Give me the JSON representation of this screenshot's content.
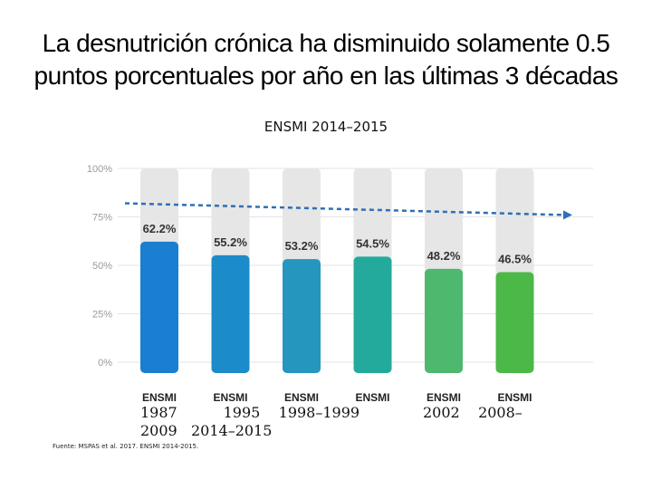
{
  "slide": {
    "title": "La desnutrición crónica ha disminuido solamente 0.5 puntos porcentuales por año en las últimas 3 décadas",
    "subtitle": "ENSMI 2014–2015",
    "years_line1": "1987          1995    1998–1999",
    "years_line2": "2009   2014–2015",
    "years_right": "2002    2008–",
    "source": "Fuente: MSPAS et al. 2017. ENSMI 2014-2015."
  },
  "chart_data": {
    "type": "bar",
    "title": "ENSMI 2014–2015",
    "categories": [
      "ENSMI",
      "ENSMI",
      "ENSMI",
      "ENSMI",
      "ENSMI",
      "ENSMI"
    ],
    "values": [
      62.2,
      55.2,
      53.2,
      54.5,
      48.2,
      46.5
    ],
    "labels": [
      "62.2%",
      "55.2%",
      "53.2%",
      "54.5%",
      "48.2%",
      "46.5%"
    ],
    "bar_colors": [
      "#1a7fd0",
      "#1b8bc9",
      "#2596be",
      "#24aa9c",
      "#4db86e",
      "#4cb848"
    ],
    "background_bar_value": 100,
    "background_bar_color": "#e6e6e6",
    "yticks": [
      "100%",
      "75%",
      "50%",
      "25%",
      "0%"
    ],
    "ytick_values": [
      100,
      75,
      50,
      25,
      0
    ],
    "ylim": [
      0,
      100
    ],
    "trend": {
      "from": 82,
      "to": 76,
      "color": "#2f6fb5",
      "style": "dashed-arrow"
    },
    "xlabel": "",
    "ylabel": ""
  }
}
